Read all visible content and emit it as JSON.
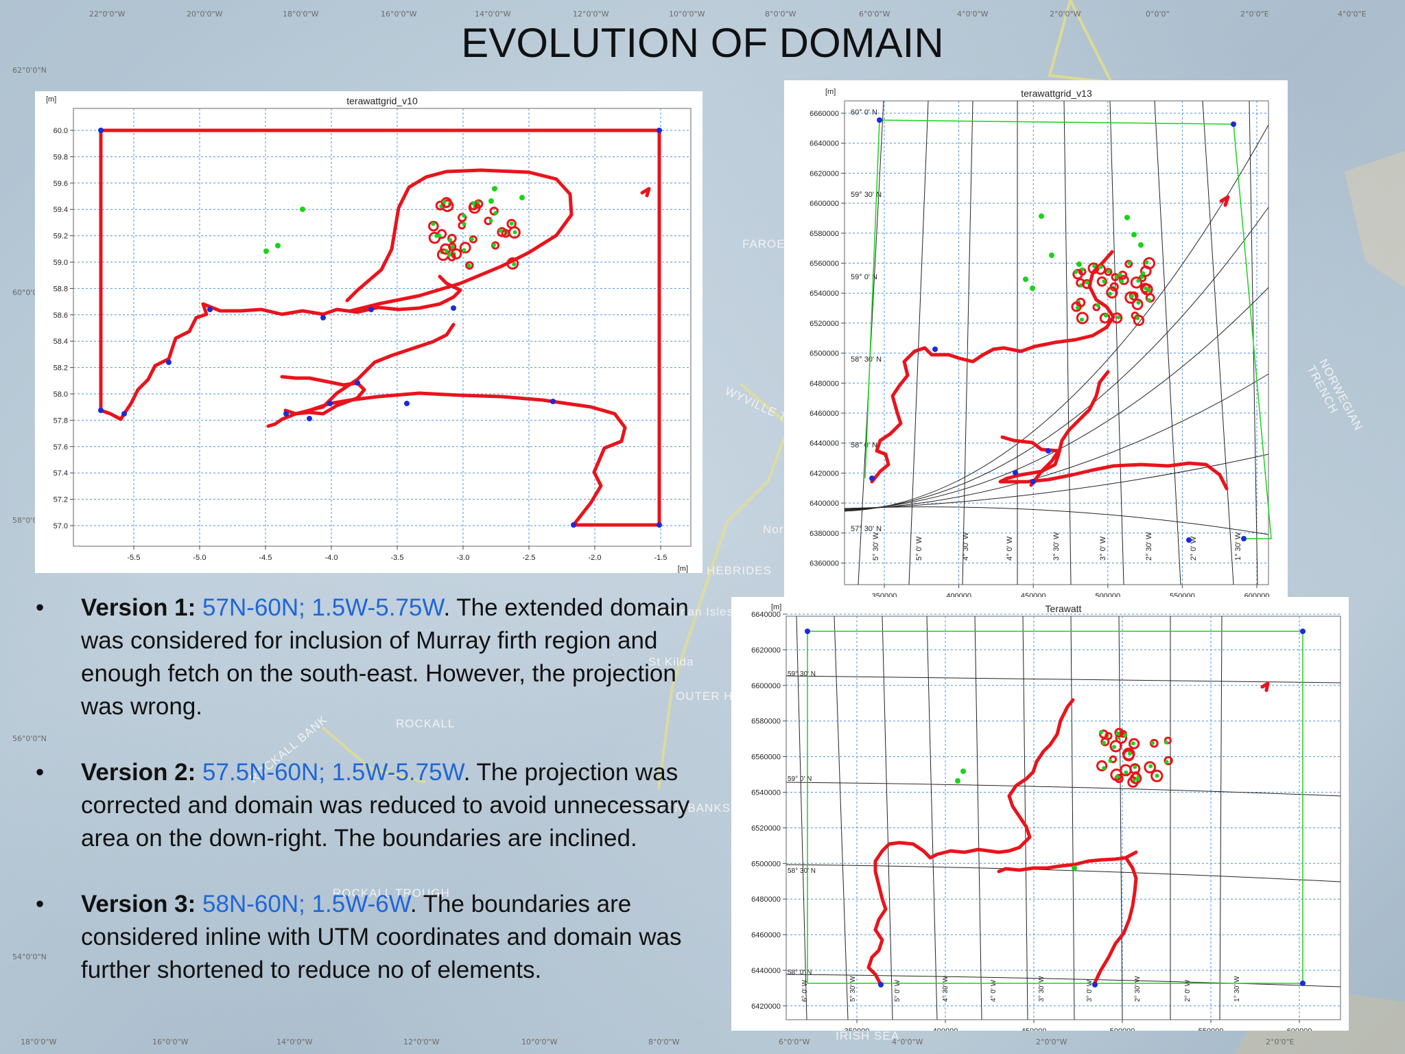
{
  "slide": {
    "title": "EVOLUTION OF DOMAIN"
  },
  "background": {
    "top_lon_labels": [
      "22°0'0\"W",
      "20°0'0\"W",
      "18°0'0\"W",
      "16°0'0\"W",
      "14°0'0\"W",
      "12°0'0\"W",
      "10°0'0\"W",
      "8°0'0\"W",
      "6°0'0\"W",
      "4°0'0\"W",
      "2°0'0\"W",
      "0°0'0\"",
      "2°0'0\"E",
      "4°0'0\"E"
    ],
    "bottom_lon_labels": [
      "18°0'0\"W",
      "16°0'0\"W",
      "14°0'0\"W",
      "12°0'0\"W",
      "10°0'0\"W",
      "8°0'0\"W",
      "6°0'0\"W",
      "4°0'0\"W",
      "2°0'0\"W",
      "2°0'0\"E"
    ],
    "lat_labels": [
      "62°0'0\"N",
      "60°0'0\"N",
      "58°0'0\"N",
      "56°0'0\"N",
      "54°0'0\"N"
    ],
    "features": [
      "FAROE",
      "WYVILLE T RIDGE",
      "NORWEGIAN TRENCH",
      "HEBRIDES",
      "Flannan Isles",
      "St Kilda",
      "OUTER HEBRIDES",
      "ROCKALL",
      "ROCKALL BANK",
      "STANTON BANKS",
      "ROCKALL TROUGH",
      "IRISH SEA",
      "North"
    ]
  },
  "plots": {
    "v10": {
      "title": "terawattgrid_v10",
      "unit": "[m]",
      "x_unit": "[m]",
      "y_ticks": [
        "60.0",
        "59.8",
        "59.6",
        "59.4",
        "59.2",
        "59.0",
        "58.8",
        "58.6",
        "58.4",
        "58.2",
        "58.0",
        "57.8",
        "57.6",
        "57.4",
        "57.2",
        "57.0"
      ],
      "x_ticks": [
        "-5.5",
        "-5.0",
        "-4.5",
        "-4.0",
        "-3.5",
        "-3.0",
        "-2.5",
        "-2.0",
        "-1.5"
      ]
    },
    "v13": {
      "title": "terawattgrid_v13",
      "unit": "[m]",
      "x_unit": "[m]",
      "y_ticks": [
        "6660000",
        "6640000",
        "6620000",
        "6600000",
        "6580000",
        "6560000",
        "6540000",
        "6520000",
        "6500000",
        "6480000",
        "6460000",
        "6440000",
        "6420000",
        "6400000",
        "6380000",
        "6360000"
      ],
      "x_ticks": [
        "350000",
        "400000",
        "450000",
        "500000",
        "550000",
        "600000"
      ],
      "lat_labels": [
        "60° 0' N",
        "59° 30' N",
        "59° 0' N",
        "58° 30' N",
        "58° 0' N",
        "57° 30' N"
      ],
      "lon_labels": [
        "5° 30' W",
        "5° 0' W",
        "4° 30' W",
        "4° 0' W",
        "3° 30' W",
        "3° 0' W",
        "2° 30' W",
        "2° 0' W",
        "1° 30' W"
      ]
    },
    "terawatt": {
      "title": "Terawatt",
      "unit": "[m]",
      "x_unit": "[m]",
      "y_ticks": [
        "6640000",
        "6620000",
        "6600000",
        "6580000",
        "6560000",
        "6540000",
        "6520000",
        "6500000",
        "6480000",
        "6460000",
        "6440000",
        "6420000"
      ],
      "x_ticks": [
        "350000",
        "400000",
        "450000",
        "500000",
        "550000",
        "600000"
      ],
      "lat_labels": [
        "59° 30' N",
        "59° 0' N",
        "58° 30' N",
        "58° 0' N"
      ],
      "lon_labels": [
        "6° 0' W",
        "5° 30' W",
        "5° 0' W",
        "4° 30' W",
        "4° 0' W",
        "3° 30' W",
        "3° 0' W",
        "2° 30' W",
        "2° 0' W",
        "1° 30' W"
      ]
    }
  },
  "bullets": [
    {
      "label": "Version 1:",
      "range": "57N-60N; 1.5W-5.75W",
      "text": ". The extended domain was considered for inclusion of  Murray firth region and enough fetch on the south-east. However, the projection was wrong."
    },
    {
      "label": "Version 2:",
      "range": "57.5N-60N; 1.5W-5.75W",
      "text": ". The projection was corrected and domain was reduced to avoid unnecessary area on the down-right. The boundaries are inclined."
    },
    {
      "label": "Version 3:",
      "range": "58N-60N; 1.5W-6W",
      "text": ".  The boundaries are considered inline with UTM coordinates and domain was further shortened to reduce no of elements."
    }
  ],
  "bullet_symbol": "•",
  "colors": {
    "boundary": "#e8141c",
    "nodes": "#1a2bd8",
    "islands": "#19d419",
    "grid": "#4a90e2",
    "highlight": "#1f66d6"
  }
}
